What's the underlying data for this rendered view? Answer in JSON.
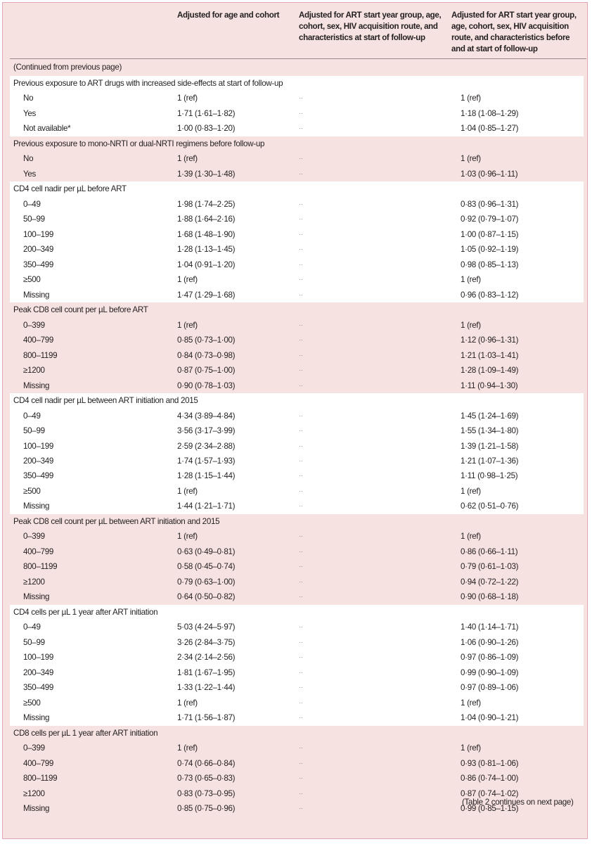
{
  "header": {
    "col1": "Adjusted for age and cohort",
    "col2": [
      "Adjusted for ART start year group, age,",
      "cohort, sex, HIV acquisition route, and",
      "characteristics at start of follow-up"
    ],
    "col3": [
      "Adjusted for ART start year group,",
      "age, cohort, sex, HIV acquisition",
      "route, and characteristics before",
      "and at start of follow-up"
    ]
  },
  "continued_label": "(Continued from previous page)",
  "footer_note": "(Table 2 continues on next page)",
  "colors": {
    "band_pink": "#f6e2e1",
    "band_white": "#ffffff",
    "border": "#e3a4b3"
  },
  "groups": [
    {
      "title": "Previous exposure to ART drugs with increased side-effects at start of follow-up",
      "rows": [
        [
          "No",
          "1 (ref)",
          "··",
          "1 (ref)"
        ],
        [
          "Yes",
          "1·71 (1·61–1·82)",
          "··",
          "1·18 (1·08–1·29)"
        ],
        [
          "Not available*",
          "1·00 (0·83–1·20)",
          "··",
          "1·04 (0·85–1·27)"
        ]
      ]
    },
    {
      "title": "Previous exposure to mono-NRTI or dual-NRTI regimens before follow-up",
      "rows": [
        [
          "No",
          "1 (ref)",
          "··",
          "1 (ref)"
        ],
        [
          "Yes",
          "1·39 (1·30–1·48)",
          "··",
          "1·03 (0·96–1·11)"
        ]
      ]
    },
    {
      "title": "CD4 cell nadir per µL before ART",
      "rows": [
        [
          "0–49",
          "1·98 (1·74–2·25)",
          "··",
          "0·83 (0·96–1·31)"
        ],
        [
          "50–99",
          "1·88 (1·64–2·16)",
          "··",
          "0·92 (0·79–1·07)"
        ],
        [
          "100–199",
          "1·68 (1·48–1·90)",
          "··",
          "1·00 (0·87–1·15)"
        ],
        [
          "200–349",
          "1·28 (1·13–1·45)",
          "··",
          "1·05 (0·92–1·19)"
        ],
        [
          "350–499",
          "1·04 (0·91–1·20)",
          "··",
          "0·98 (0·85–1·13)"
        ],
        [
          "≥500",
          "1 (ref)",
          "··",
          "1 (ref)"
        ],
        [
          "Missing",
          "1·47 (1·29–1·68)",
          "··",
          "0·96 (0·83–1·12)"
        ]
      ]
    },
    {
      "title": "Peak CD8 cell count per µL before ART",
      "rows": [
        [
          "0–399",
          "1 (ref)",
          "··",
          "1 (ref)"
        ],
        [
          "400–799",
          "0·85 (0·73–1·00)",
          "··",
          "1·12 (0·96–1·31)"
        ],
        [
          "800–1199",
          "0·84 (0·73–0·98)",
          "··",
          "1·21 (1·03–1·41)"
        ],
        [
          "≥1200",
          "0·87 (0·75–1·00)",
          "··",
          "1·28 (1·09–1·49)"
        ],
        [
          "Missing",
          "0·90 (0·78–1·03)",
          "··",
          "1·11 (0·94–1·30)"
        ]
      ]
    },
    {
      "title": "CD4 cell nadir per µL between ART initiation and 2015",
      "rows": [
        [
          "0–49",
          "4·34 (3·89–4·84)",
          "··",
          "1·45 (1·24–1·69)"
        ],
        [
          "50–99",
          "3·56 (3·17–3·99)",
          "··",
          "1·55 (1·34–1·80)"
        ],
        [
          "100–199",
          "2·59 (2·34–2·88)",
          "··",
          "1·39 (1·21–1·58)"
        ],
        [
          "200–349",
          "1·74 (1·57–1·93)",
          "··",
          "1·21 (1·07–1·36)"
        ],
        [
          "350–499",
          "1·28 (1·15–1·44)",
          "··",
          "1·11 (0·98–1·25)"
        ],
        [
          "≥500",
          "1 (ref)",
          "··",
          "1 (ref)"
        ],
        [
          "Missing",
          "1·44 (1·21–1·71)",
          "··",
          "0·62 (0·51–0·76)"
        ]
      ]
    },
    {
      "title": "Peak CD8 cell count per µL between ART initiation and 2015",
      "rows": [
        [
          "0–399",
          "1 (ref)",
          "··",
          "1 (ref)"
        ],
        [
          "400–799",
          "0·63 (0·49–0·81)",
          "··",
          "0·86 (0·66–1·11)"
        ],
        [
          "800–1199",
          "0·58 (0·45–0·74)",
          "··",
          "0·79 (0·61–1·03)"
        ],
        [
          "≥1200",
          "0·79 (0·63–1·00)",
          "··",
          "0·94 (0·72–1·22)"
        ],
        [
          "Missing",
          "0·64 (0·50–0·82)",
          "··",
          "0·90 (0·68–1·18)"
        ]
      ]
    },
    {
      "title": "CD4 cells per µL 1 year after ART initiation",
      "rows": [
        [
          "0–49",
          "5·03 (4·24–5·97)",
          "··",
          "1·40 (1·14–1·71)"
        ],
        [
          "50–99",
          "3·26 (2·84–3·75)",
          "··",
          "1·06 (0·90–1·26)"
        ],
        [
          "100–199",
          "2·34 (2·14–2·56)",
          "··",
          "0·97 (0·86–1·09)"
        ],
        [
          "200–349",
          "1·81 (1·67–1·95)",
          "··",
          "0·99 (0·90–1·09)"
        ],
        [
          "350–499",
          "1·33 (1·22–1·44)",
          "··",
          "0·97 (0·89–1·06)"
        ],
        [
          "≥500",
          "1 (ref)",
          "··",
          "1 (ref)"
        ],
        [
          "Missing",
          "1·71 (1·56–1·87)",
          "··",
          "1·04 (0·90–1·21)"
        ]
      ]
    },
    {
      "title": "CD8 cells per µL 1 year after ART initiation",
      "rows": [
        [
          "0–399",
          "1 (ref)",
          "··",
          "1 (ref)"
        ],
        [
          "400–799",
          "0·74 (0·66–0·84)",
          "··",
          "0·93 (0·81–1·06)"
        ],
        [
          "800–1199",
          "0·73 (0·65–0·83)",
          "··",
          "0·86 (0·74–1·00)"
        ],
        [
          "≥1200",
          "0·83 (0·73–0·95)",
          "··",
          "0·87 (0·74–1·02)"
        ],
        [
          "Missing",
          "0·85 (0·75–0·96)",
          "··",
          "0·99 (0·85–1·15)"
        ]
      ]
    }
  ]
}
